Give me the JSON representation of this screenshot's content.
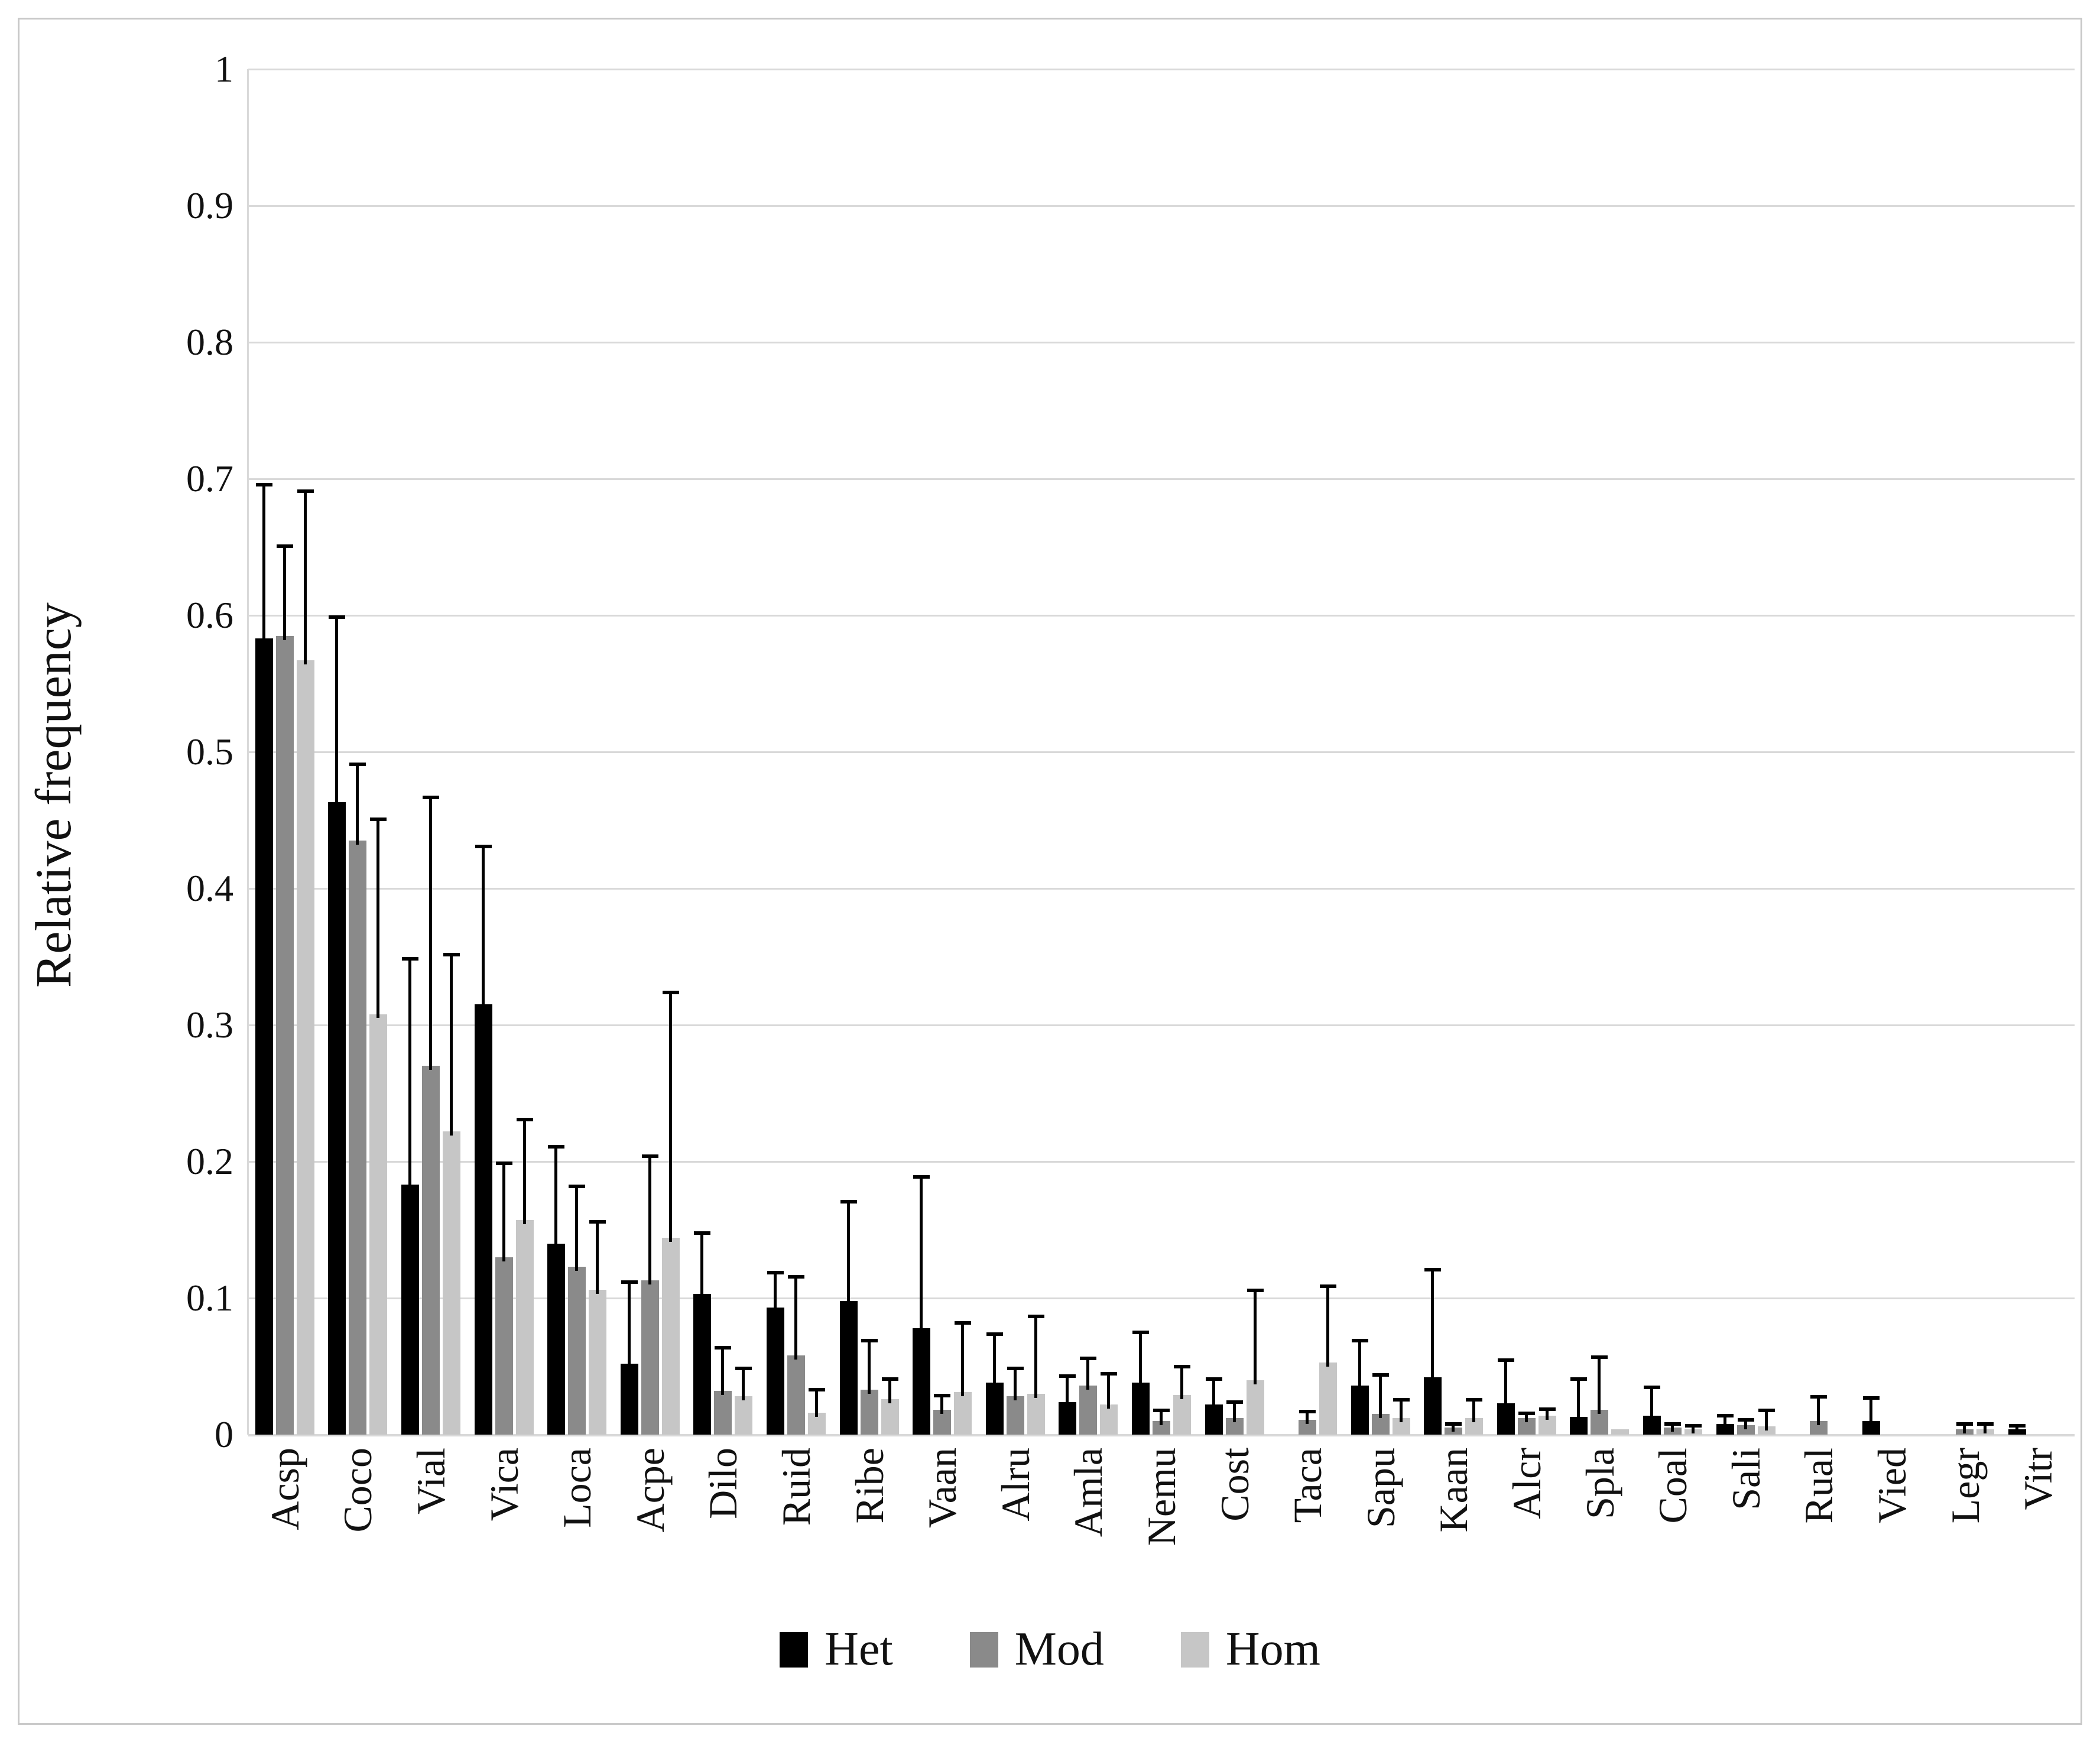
{
  "figure": {
    "background": "#ffffff",
    "border_color": "#c9c9c9",
    "gridline_color": "#d9d9d9",
    "error_bar_color": "#000000"
  },
  "chart_data": {
    "type": "bar",
    "title": "",
    "xlabel": "",
    "ylabel": "Relative frequency",
    "ylim": [
      0,
      1
    ],
    "grid": "horizontal",
    "legend_position": "bottom",
    "y_ticks": [
      "1",
      "0.9",
      "0.8",
      "0.7",
      "0.6",
      "0.5",
      "0.4",
      "0.3",
      "0.2",
      "0.1",
      "0"
    ],
    "y_tick_values": [
      1,
      0.9,
      0.8,
      0.7,
      0.6,
      0.5,
      0.4,
      0.3,
      0.2,
      0.1,
      0
    ],
    "categories": [
      "Acsp",
      "Coco",
      "Vial",
      "Vica",
      "Loca",
      "Acpe",
      "Dilo",
      "Ruid",
      "Ribe",
      "Vaan",
      "Alru",
      "Amla",
      "Nemu",
      "Cost",
      "Taca",
      "Sapu",
      "Kaan",
      "Alcr",
      "Spla",
      "Coal",
      "Sali",
      "Rual",
      "Vied",
      "Legr",
      "Vitr"
    ],
    "series": [
      {
        "name": "Het",
        "color": "#000000",
        "values": [
          0.583,
          0.463,
          0.183,
          0.315,
          0.14,
          0.052,
          0.103,
          0.093,
          0.098,
          0.078,
          0.038,
          0.024,
          0.038,
          0.022,
          0,
          0.036,
          0.042,
          0.023,
          0.013,
          0.014,
          0.008,
          0,
          0.01,
          0,
          0.004
        ],
        "error_up": [
          0.114,
          0.137,
          0.167,
          0.117,
          0.072,
          0.061,
          0.046,
          0.027,
          0.074,
          0.112,
          0.037,
          0.02,
          0.038,
          0.02,
          0,
          0.034,
          0.08,
          0.033,
          0.029,
          0.022,
          0.007,
          0,
          0.018,
          0,
          0.004
        ]
      },
      {
        "name": "Mod",
        "color": "#8a8a8a",
        "values": [
          0.585,
          0.435,
          0.27,
          0.13,
          0.123,
          0.113,
          0.032,
          0.058,
          0.033,
          0.018,
          0.028,
          0.036,
          0.01,
          0.012,
          0.011,
          0.015,
          0.005,
          0.012,
          0.018,
          0.005,
          0.007,
          0.01,
          0,
          0.004,
          0
        ],
        "error_up": [
          0.067,
          0.057,
          0.198,
          0.07,
          0.06,
          0.092,
          0.033,
          0.059,
          0.037,
          0.012,
          0.022,
          0.021,
          0.009,
          0.013,
          0.007,
          0.03,
          0.004,
          0.005,
          0.04,
          0.004,
          0.005,
          0.019,
          0,
          0.005,
          0
        ]
      },
      {
        "name": "Hom",
        "color": "#c6c6c6",
        "values": [
          0.567,
          0.308,
          0.222,
          0.157,
          0.106,
          0.144,
          0.028,
          0.016,
          0.026,
          0.031,
          0.03,
          0.022,
          0.029,
          0.04,
          0.053,
          0.012,
          0.012,
          0.014,
          0.004,
          0.004,
          0.006,
          0,
          0,
          0.004,
          0
        ],
        "error_up": [
          0.125,
          0.144,
          0.131,
          0.075,
          0.051,
          0.181,
          0.022,
          0.018,
          0.016,
          0.052,
          0.058,
          0.024,
          0.022,
          0.067,
          0.057,
          0.015,
          0.015,
          0.006,
          0,
          0.004,
          0.013,
          0,
          0,
          0.005,
          0
        ]
      }
    ]
  }
}
